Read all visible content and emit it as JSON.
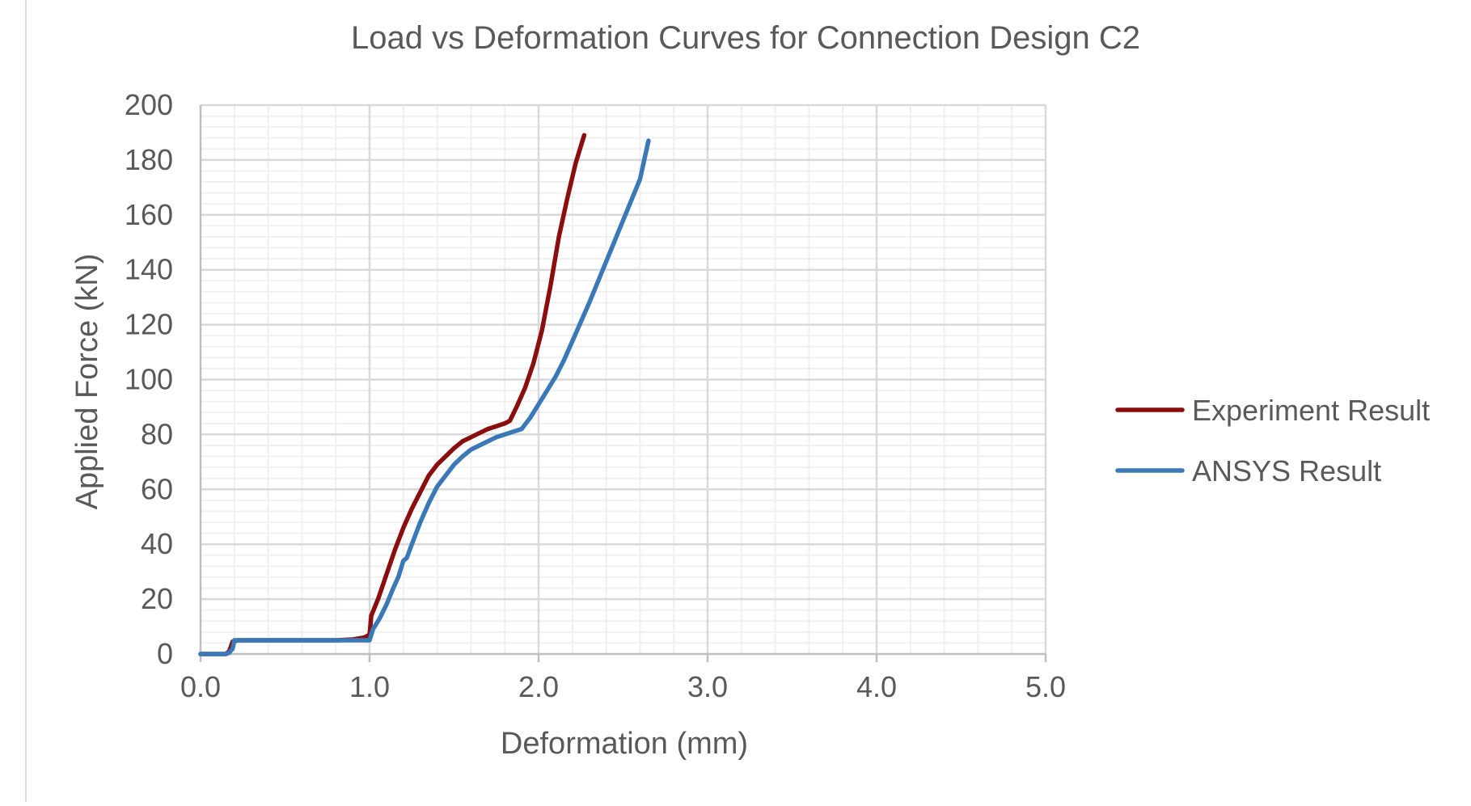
{
  "chart_data": {
    "type": "line",
    "title": "Load vs Deformation Curves for Connection Design C2",
    "xlabel": "Deformation (mm)",
    "ylabel": "Applied Force (kN)",
    "xlim": [
      0,
      5
    ],
    "ylim": [
      0,
      200
    ],
    "x_ticks": [
      "0.0",
      "1.0",
      "2.0",
      "3.0",
      "4.0",
      "5.0"
    ],
    "y_ticks": [
      "0",
      "20",
      "40",
      "60",
      "80",
      "100",
      "120",
      "140",
      "160",
      "180",
      "200"
    ],
    "grid": {
      "major": true,
      "minor": true,
      "x_major_step": 1.0,
      "x_minor_step": 0.2,
      "y_major_step": 20,
      "y_minor_step": 4
    },
    "legend": {
      "position": "right"
    },
    "series": [
      {
        "name": "Experiment Result",
        "color": "#8b0e0e",
        "points": [
          [
            0.0,
            0
          ],
          [
            0.15,
            0
          ],
          [
            0.17,
            1
          ],
          [
            0.19,
            4.5
          ],
          [
            0.22,
            5
          ],
          [
            0.5,
            5
          ],
          [
            0.8,
            5
          ],
          [
            0.9,
            5.3
          ],
          [
            0.97,
            6
          ],
          [
            1.0,
            7
          ],
          [
            1.01,
            14
          ],
          [
            1.05,
            20
          ],
          [
            1.1,
            29
          ],
          [
            1.15,
            38
          ],
          [
            1.2,
            46
          ],
          [
            1.25,
            53
          ],
          [
            1.3,
            59
          ],
          [
            1.35,
            65
          ],
          [
            1.4,
            69
          ],
          [
            1.45,
            72
          ],
          [
            1.5,
            75
          ],
          [
            1.55,
            77.5
          ],
          [
            1.6,
            79
          ],
          [
            1.65,
            80.5
          ],
          [
            1.7,
            82
          ],
          [
            1.75,
            83
          ],
          [
            1.8,
            84
          ],
          [
            1.83,
            85
          ],
          [
            1.87,
            90
          ],
          [
            1.92,
            97
          ],
          [
            1.97,
            106
          ],
          [
            2.02,
            118
          ],
          [
            2.07,
            134
          ],
          [
            2.12,
            152
          ],
          [
            2.17,
            166
          ],
          [
            2.22,
            179
          ],
          [
            2.27,
            189
          ]
        ]
      },
      {
        "name": "ANSYS Result",
        "color": "#3a78b8",
        "points": [
          [
            0.0,
            0
          ],
          [
            0.15,
            0
          ],
          [
            0.17,
            0.5
          ],
          [
            0.19,
            2
          ],
          [
            0.2,
            5
          ],
          [
            0.5,
            5
          ],
          [
            0.8,
            5
          ],
          [
            1.0,
            5
          ],
          [
            1.02,
            9
          ],
          [
            1.06,
            13
          ],
          [
            1.1,
            18
          ],
          [
            1.14,
            24
          ],
          [
            1.17,
            28
          ],
          [
            1.2,
            34
          ],
          [
            1.22,
            35
          ],
          [
            1.25,
            40
          ],
          [
            1.3,
            48
          ],
          [
            1.35,
            55
          ],
          [
            1.4,
            61
          ],
          [
            1.45,
            65
          ],
          [
            1.5,
            69
          ],
          [
            1.55,
            72
          ],
          [
            1.6,
            74.5
          ],
          [
            1.65,
            76
          ],
          [
            1.7,
            77.5
          ],
          [
            1.75,
            79
          ],
          [
            1.8,
            80
          ],
          [
            1.85,
            81
          ],
          [
            1.9,
            82
          ],
          [
            1.95,
            86
          ],
          [
            2.0,
            91
          ],
          [
            2.05,
            96
          ],
          [
            2.1,
            101
          ],
          [
            2.15,
            107
          ],
          [
            2.2,
            114
          ],
          [
            2.3,
            128
          ],
          [
            2.4,
            143
          ],
          [
            2.5,
            158
          ],
          [
            2.6,
            173
          ],
          [
            2.65,
            187
          ]
        ]
      }
    ]
  }
}
